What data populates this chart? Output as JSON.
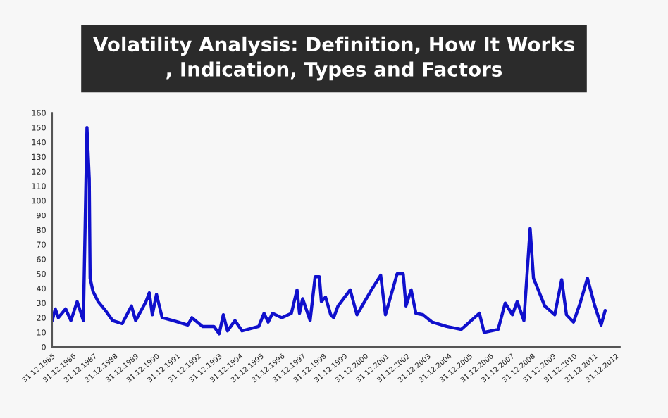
{
  "chart_data": {
    "type": "line",
    "title": "Volatility Analysis: Definition, How It Works\n, Indication, Types and Factors",
    "x": [
      "1986-01-01",
      "1986-02-25",
      "1986-04-20",
      "1986-08-25",
      "1986-11-25",
      "1987-03-15",
      "1987-07-01",
      "1987-09-02",
      "1987-10-12",
      "1987-10-27",
      "1987-12-16",
      "1988-03-15",
      "1988-07-20",
      "1988-11-25",
      "1989-05-12",
      "1989-10-20",
      "1990-01-01",
      "1990-07-01",
      "1990-08-28",
      "1990-10-20",
      "1991-01-01",
      "1991-04-10",
      "1991-10-20",
      "1992-07-01",
      "1992-09-12",
      "1993-03-15",
      "1993-10-01",
      "1994-01-01",
      "1994-03-15",
      "1994-05-27",
      "1994-10-05",
      "1995-02-06",
      "1995-11-25",
      "1996-02-25",
      "1996-05-08",
      "1996-07-23",
      "1997-01-01",
      "1997-06-18",
      "1997-09-25",
      "1997-11-07",
      "1998-01-01",
      "1998-05-12",
      "1998-08-08",
      "1998-10-20",
      "1998-11-25",
      "1999-02-06",
      "1999-05-08",
      "1999-06-28",
      "1999-09-12",
      "2000-04-12",
      "2000-08-08",
      "2001-04-20",
      "2001-09-28",
      "2001-12-20",
      "2002-07-13",
      "2002-10-27",
      "2002-12-14",
      "2003-03-15",
      "2003-06-06",
      "2003-10-08",
      "2004-03-15",
      "2004-11-25",
      "2005-08-08",
      "2006-06-21",
      "2006-09-12",
      "2007-05-15",
      "2007-09-16",
      "2008-01-20",
      "2008-04-12",
      "2008-08-08",
      "2008-11-25",
      "2009-01-23",
      "2009-04-16",
      "2009-08-08",
      "2010-01-30",
      "2010-05-31",
      "2010-08-23",
      "2010-12-24",
      "2011-04-20",
      "2011-08-25",
      "2012-01-01",
      "2012-04-20",
      "2012-07-01"
    ],
    "series": [
      {
        "color": "#1010cc",
        "values": [
          18,
          26,
          20,
          26,
          18,
          31,
          18,
          150,
          115,
          47,
          38,
          31,
          25,
          18,
          16,
          28,
          18,
          31,
          37,
          22,
          36,
          20,
          18,
          15,
          20,
          14,
          14,
          9,
          22,
          11,
          18,
          11,
          14,
          23,
          17,
          23,
          20,
          23,
          39,
          23,
          33,
          18,
          48,
          48,
          31,
          34,
          22,
          20,
          28,
          39,
          22,
          39,
          49,
          22,
          50,
          50,
          28,
          39,
          23,
          22,
          17,
          14,
          12,
          23,
          10,
          12,
          30,
          22,
          31,
          18,
          81,
          47,
          39,
          28,
          22,
          46,
          22,
          17,
          30,
          47,
          28,
          15,
          25
        ]
      }
    ],
    "xlim": [
      "1985-12-31",
      "2013-03-15"
    ],
    "xticks": [
      {
        "value": "1985-12-31",
        "label": "31.12.1985"
      },
      {
        "value": "1986-12-31",
        "label": "31.12.1986"
      },
      {
        "value": "1987-12-31",
        "label": "31.12.1987"
      },
      {
        "value": "1988-12-31",
        "label": "31.12.1988"
      },
      {
        "value": "1989-12-31",
        "label": "31.12.1989"
      },
      {
        "value": "1990-12-31",
        "label": "31.12.1990"
      },
      {
        "value": "1991-12-31",
        "label": "31.12.1991"
      },
      {
        "value": "1992-12-31",
        "label": "31.12.1992"
      },
      {
        "value": "1993-12-31",
        "label": "31.12.1993"
      },
      {
        "value": "1994-12-31",
        "label": "31.12.1994"
      },
      {
        "value": "1995-12-31",
        "label": "31.12.1995"
      },
      {
        "value": "1996-12-31",
        "label": "31.12.1996"
      },
      {
        "value": "1997-12-31",
        "label": "31.12.1997"
      },
      {
        "value": "1998-12-31",
        "label": "31.12.1998"
      },
      {
        "value": "1999-12-31",
        "label": "31.12.1999"
      },
      {
        "value": "2000-12-31",
        "label": "31.12.2000"
      },
      {
        "value": "2001-12-31",
        "label": "31.12.2001"
      },
      {
        "value": "2002-12-31",
        "label": "31.12.2002"
      },
      {
        "value": "2003-12-31",
        "label": "31.12.2003"
      },
      {
        "value": "2004-12-31",
        "label": "31.12.2004"
      },
      {
        "value": "2005-12-31",
        "label": "31.12.2005"
      },
      {
        "value": "2006-12-31",
        "label": "31.12.2006"
      },
      {
        "value": "2007-12-31",
        "label": "31.12.2007"
      },
      {
        "value": "2008-12-31",
        "label": "31.12.2008"
      },
      {
        "value": "2009-12-31",
        "label": "31.12.2009"
      },
      {
        "value": "2010-12-31",
        "label": "31.12.2010"
      },
      {
        "value": "2011-12-31",
        "label": "31.12.2011"
      },
      {
        "value": "2012-12-31",
        "label": "31.12.2012"
      }
    ],
    "ylim": [
      0,
      160
    ],
    "yticks": [
      0,
      10,
      20,
      30,
      40,
      50,
      60,
      70,
      80,
      90,
      100,
      110,
      120,
      130,
      140,
      150,
      160
    ],
    "grid": false,
    "legend": false,
    "marker": "none",
    "line_style": "solid"
  }
}
